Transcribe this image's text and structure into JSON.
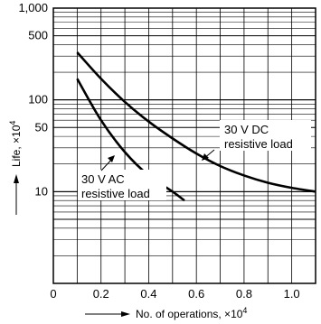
{
  "chart_data": {
    "type": "line",
    "xlabel": "No. of operations, ×10",
    "xlabel_exp": "4",
    "ylabel": "Life, ×10",
    "ylabel_exp": "4",
    "x_scale": "linear",
    "y_scale": "log",
    "xlim": [
      0,
      1.1
    ],
    "ylim": [
      1,
      1000
    ],
    "x_ticks": [
      0,
      0.2,
      0.4,
      0.6,
      0.8,
      1.0
    ],
    "x_tick_labels": [
      "0",
      "0.2",
      "0.4",
      "0.6",
      "0.8",
      "1.0"
    ],
    "y_ticks": [
      10,
      50,
      100,
      500,
      1000
    ],
    "y_tick_labels": [
      "10",
      "50",
      "100",
      "500",
      "1,000"
    ],
    "grid": true,
    "series": [
      {
        "name": "30 V DC resistive load",
        "label_lines": [
          "30 V DC",
          "resistive load"
        ],
        "x": [
          0.1,
          0.2,
          0.3,
          0.4,
          0.5,
          0.6,
          0.7,
          0.8,
          0.9,
          1.0,
          1.1
        ],
        "y": [
          330,
          170,
          95,
          58,
          38,
          26,
          19,
          15,
          12.5,
          11,
          10
        ]
      },
      {
        "name": "30 V AC resistive load",
        "label_lines": [
          "30 V AC",
          "resistive load"
        ],
        "x": [
          0.1,
          0.2,
          0.3,
          0.4,
          0.5,
          0.55
        ],
        "y": [
          170,
          60,
          27,
          15,
          10,
          8
        ]
      }
    ]
  }
}
